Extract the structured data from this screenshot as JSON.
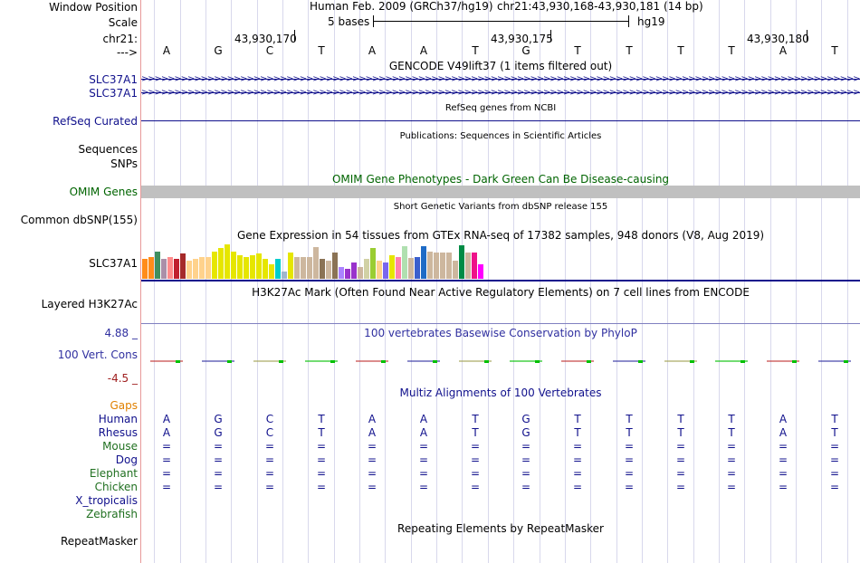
{
  "labels": {
    "window_position": "Window Position",
    "scale": "Scale",
    "chrom": "chr21:",
    "arrow": "--->",
    "gencode_1": "SLC37A1",
    "gencode_2": "SLC37A1",
    "refseq": "RefSeq Curated",
    "sequences": "Sequences",
    "snps": "SNPs",
    "omim": "OMIM Genes",
    "dbsnp": "Common dbSNP(155)",
    "gtex": "SLC37A1",
    "h3k27ac": "Layered H3K27Ac",
    "cons_max": "4.88 _",
    "cons": "100 Vert. Cons",
    "cons_min": "-4.5 _",
    "gaps": "Gaps",
    "species": [
      "Human",
      "Rhesus",
      "Mouse",
      "Dog",
      "Elephant",
      "Chicken",
      "X_tropicalis",
      "Zebrafish"
    ],
    "repeatmasker": "RepeatMasker"
  },
  "header": {
    "assembly": "Human Feb. 2009 (GRCh37/hg19)",
    "position": "chr21:43,930,168-43,930,181 (14 bp)",
    "scale_text": "5 bases",
    "scale_db": "hg19",
    "ticks": [
      "43,930,170",
      "43,930,175",
      "43,930,180"
    ]
  },
  "bases": [
    "A",
    "G",
    "C",
    "T",
    "A",
    "A",
    "T",
    "G",
    "T",
    "T",
    "T",
    "T",
    "A",
    "T"
  ],
  "titles": {
    "gencode": "GENCODE V49lift37 (1 items filtered out)",
    "refseq": "RefSeq genes from NCBI",
    "publications": "Publications: Sequences in Scientific Articles",
    "omim": "OMIM Gene Phenotypes - Dark Green Can Be Disease-causing",
    "dbsnp": "Short Genetic Variants from dbSNP release 155",
    "gtex": "Gene Expression in 54 tissues from GTEx RNA-seq of 17382 samples, 948 donors (V8, Aug 2019)",
    "h3k27ac": "H3K27Ac Mark (Often Found Near Active Regulatory Elements) on 7 cell lines from ENCODE",
    "phylop": "100 vertebrates Basewise Conservation by PhyloP",
    "multiz": "Multiz Alignments of 100 Vertebrates",
    "repeatmasker": "Repeating Elements by RepeatMasker"
  },
  "alignment": {
    "human": [
      "A",
      "G",
      "C",
      "T",
      "A",
      "A",
      "T",
      "G",
      "T",
      "T",
      "T",
      "T",
      "A",
      "T"
    ],
    "rhesus": [
      "A",
      "G",
      "C",
      "T",
      "A",
      "A",
      "T",
      "G",
      "T",
      "T",
      "T",
      "T",
      "A",
      "T"
    ],
    "mouse": [
      "=",
      "=",
      "=",
      "=",
      "=",
      "=",
      "=",
      "=",
      "=",
      "=",
      "=",
      "=",
      "=",
      "="
    ],
    "dog": [
      "=",
      "=",
      "=",
      "=",
      "=",
      "=",
      "=",
      "=",
      "=",
      "=",
      "=",
      "=",
      "=",
      "="
    ],
    "elephant": [
      "=",
      "=",
      "=",
      "=",
      "=",
      "=",
      "=",
      "=",
      "=",
      "=",
      "=",
      "=",
      "=",
      "="
    ],
    "chicken": [
      "=",
      "=",
      "=",
      "=",
      "=",
      "=",
      "=",
      "=",
      "=",
      "=",
      "=",
      "=",
      "=",
      "="
    ]
  },
  "gtex_values": [
    0.55,
    0.6,
    0.75,
    0.55,
    0.6,
    0.55,
    0.7,
    0.5,
    0.55,
    0.6,
    0.6,
    0.75,
    0.85,
    0.95,
    0.75,
    0.65,
    0.6,
    0.65,
    0.7,
    0.55,
    0.4,
    0.55,
    0.2,
    0.72,
    0.6,
    0.6,
    0.6,
    0.88,
    0.55,
    0.5,
    0.72,
    0.32,
    0.28,
    0.45,
    0.32,
    0.55,
    0.85,
    0.5,
    0.45,
    0.65,
    0.6,
    0.9,
    0.58,
    0.6,
    0.9,
    0.75,
    0.72,
    0.72,
    0.72,
    0.5,
    0.92,
    0.72,
    0.72,
    0.4
  ],
  "gtex_colors": [
    "#ff8c1a",
    "#ff8c1a",
    "#3f8f5f",
    "#ab8fa8",
    "#ff8c8c",
    "#c0202f",
    "#a52a2a",
    "#ffd28c",
    "#ffd28c",
    "#ffd28c",
    "#ffd28c",
    "#e6e600",
    "#e6e600",
    "#e6e600",
    "#e6e600",
    "#e6e600",
    "#e6e600",
    "#e6e600",
    "#e6e600",
    "#e6e600",
    "#e6e600",
    "#00cdcd",
    "#9fb6cd",
    "#e6e600",
    "#cdb79e",
    "#cdb79e",
    "#cdb79e",
    "#cdb79e",
    "#8b7355",
    "#cdb79e",
    "#8b7355",
    "#ab82ff",
    "#9932cc",
    "#9932cc",
    "#cdb79e",
    "#d1d1a5",
    "#9acd32",
    "#ffd28c",
    "#7a67ee",
    "#e6e600",
    "#ff82ab",
    "#b0e0b0",
    "#cdb79e",
    "#3a5fcd",
    "#1e6bc6",
    "#cdb79e",
    "#cdb79e",
    "#cdb79e",
    "#cdb79e",
    "#cdb79e",
    "#008b45",
    "#cdb79e",
    "#ee1289",
    "#ff00ff"
  ],
  "colors": {
    "grid": "#d8d8ec",
    "navy": "#10108c",
    "omim_green": "#006400",
    "omim_bar": "#c0c0c0",
    "cons_label": "#3030a0",
    "cons_min": "#a02020",
    "gaps": "#e08000",
    "green_species": "#207020"
  }
}
